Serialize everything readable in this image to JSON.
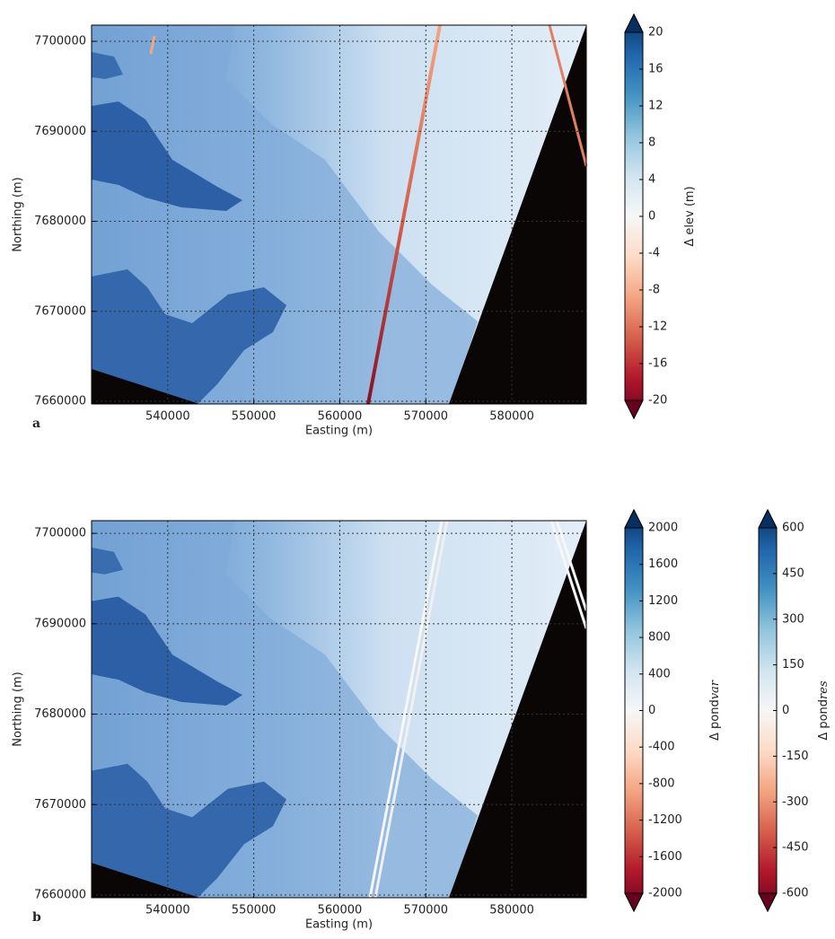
{
  "chart_data": [
    {
      "type": "image",
      "panel": "a",
      "xlabel": "Easting (m)",
      "ylabel": "Northing (m)",
      "xlim": [
        531150,
        588650
      ],
      "ylim": [
        7659700,
        7701800
      ],
      "xticks": [
        540000,
        550000,
        560000,
        570000,
        580000
      ],
      "yticks": [
        7660000,
        7670000,
        7680000,
        7690000,
        7700000
      ],
      "grid": true,
      "colorbars": [
        {
          "label": "Δ elev (m)",
          "clim": [
            -20,
            20
          ],
          "ticks": [
            -20,
            -16,
            -12,
            -8,
            -4,
            0,
            4,
            8,
            12,
            16,
            20
          ]
        }
      ]
    },
    {
      "type": "image",
      "panel": "b",
      "xlabel": "Easting (m)",
      "ylabel": "Northing (m)",
      "xlim": [
        531150,
        588650
      ],
      "ylim": [
        7659700,
        7701400
      ],
      "xticks": [
        540000,
        550000,
        560000,
        570000,
        580000
      ],
      "yticks": [
        7660000,
        7670000,
        7680000,
        7690000,
        7700000
      ],
      "grid": true,
      "colorbars": [
        {
          "label": "Δ pond",
          "label_italic": "var",
          "clim": [
            -2000,
            2000
          ],
          "ticks": [
            -2000,
            -1600,
            -1200,
            -800,
            -400,
            0,
            400,
            800,
            1200,
            1600,
            2000
          ]
        },
        {
          "label": "Δ pond",
          "label_italic": "res",
          "clim": [
            -600,
            600
          ],
          "ticks": [
            -600,
            -450,
            -300,
            -150,
            0,
            150,
            300,
            450,
            600
          ]
        }
      ]
    }
  ]
}
